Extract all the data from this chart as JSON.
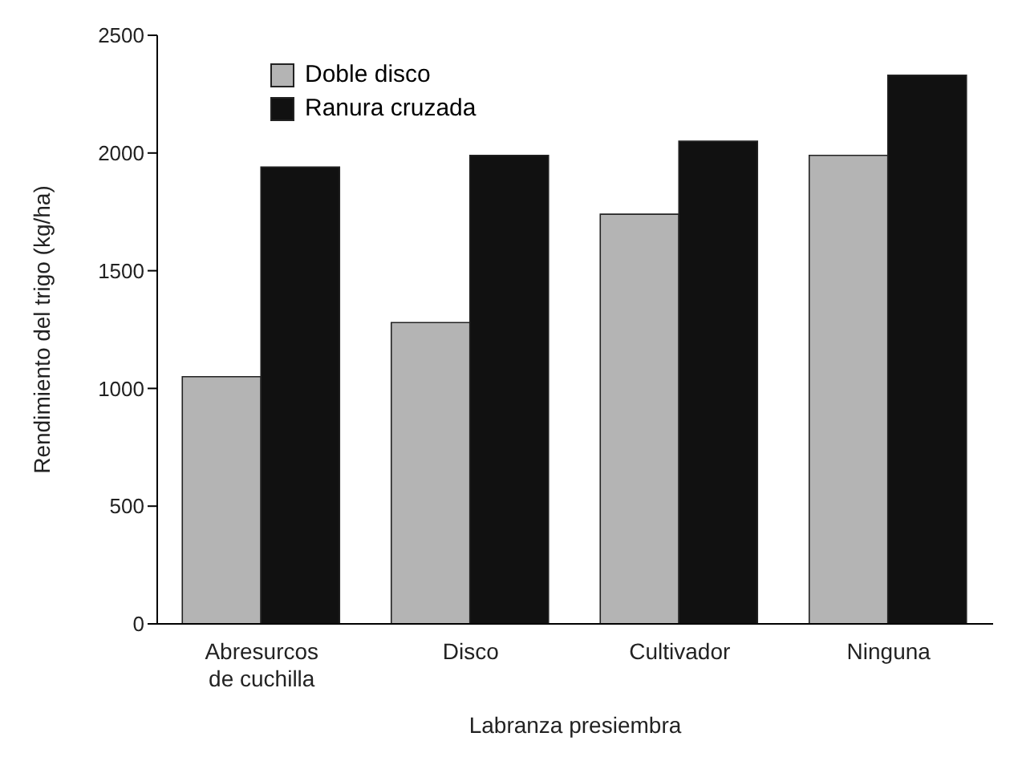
{
  "chart_data": {
    "type": "bar",
    "xlabel": "Labranza presiembra",
    "ylabel": "Rendimiento del trigo (kg/ha)",
    "categories": [
      "Abresurcos de cuchilla",
      "Disco",
      "Cultivador",
      "Ninguna"
    ],
    "series": [
      {
        "name": "Doble disco",
        "color": "#b4b4b4",
        "values": [
          1050,
          1280,
          1740,
          1990
        ]
      },
      {
        "name": "Ranura cruzada",
        "color": "#111111",
        "values": [
          1940,
          1990,
          2050,
          2330
        ]
      }
    ],
    "ylim": [
      0,
      2500
    ],
    "yticks": [
      0,
      500,
      1000,
      1500,
      2000,
      2500
    ],
    "grid": false,
    "legend": "top left"
  }
}
